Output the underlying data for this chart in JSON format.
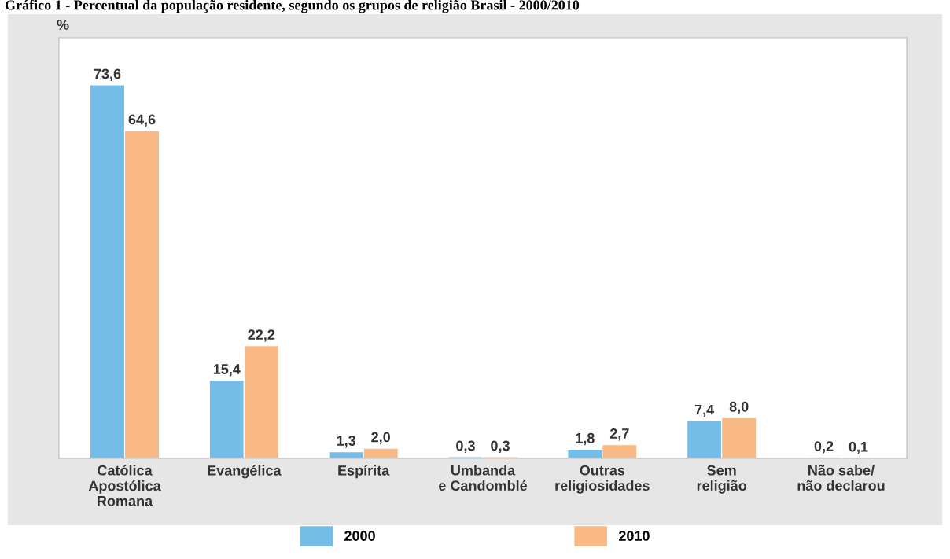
{
  "chart_data": {
    "type": "bar",
    "title": "Gráfico 1 - Percentual da população residente, segundo os grupos de religião Brasil - 2000/2010",
    "ylabel": "%",
    "categories": [
      "Católica\nApostólica\nRomana",
      "Evangélica",
      "Espírita",
      "Umbanda\ne Candomblé",
      "Outras\nreligiosidades",
      "Sem\nreligião",
      "Não sabe/\nnão declarou"
    ],
    "series": [
      {
        "name": "2000",
        "color": "#74bde8",
        "values": [
          73.6,
          15.4,
          1.3,
          0.3,
          1.8,
          7.4,
          0.2
        ],
        "value_labels": [
          "73,6",
          "15,4",
          "1,3",
          "0,3",
          "1,8",
          "7,4",
          "0,2"
        ]
      },
      {
        "name": "2010",
        "color": "#f9b984",
        "values": [
          64.6,
          22.2,
          2.0,
          0.3,
          2.7,
          8.0,
          0.1
        ],
        "value_labels": [
          "64,6",
          "22,2",
          "2,0",
          "0,3",
          "2,7",
          "8,0",
          "0,1"
        ]
      }
    ],
    "ylim": [
      0,
      82.9
    ],
    "tick_labels": "x",
    "grid": false,
    "legend": "bottom"
  }
}
